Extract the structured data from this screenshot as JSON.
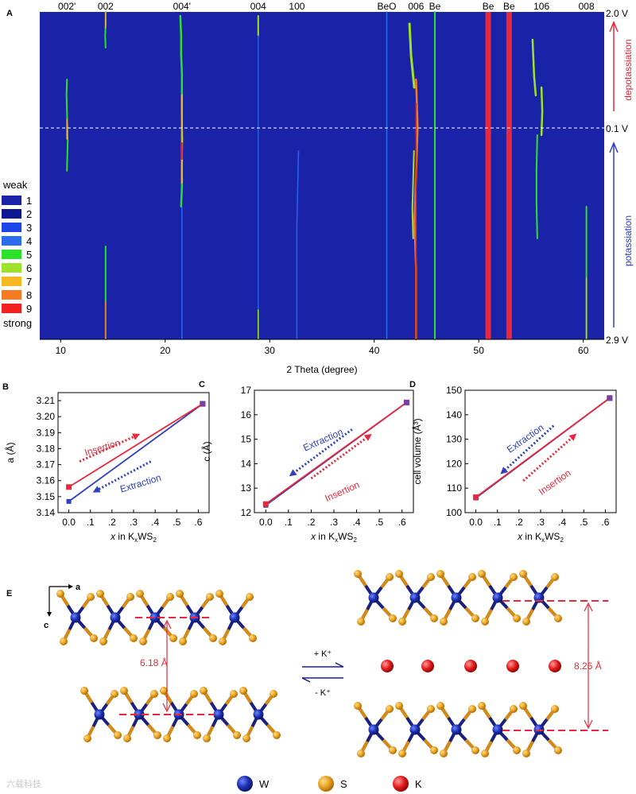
{
  "panel_labels": {
    "A": "A",
    "B": "B",
    "C": "C",
    "D": "D",
    "E": "E"
  },
  "chart_data": [
    {
      "panel": "A",
      "type": "heatmap",
      "xlabel": "2 Theta (degree)",
      "xlim": [
        8,
        62
      ],
      "x_ticks": [
        10,
        20,
        30,
        40,
        50,
        60
      ],
      "peak_labels": [
        {
          "label": "002'",
          "x": 10.6
        },
        {
          "label": "002",
          "x": 14.3
        },
        {
          "label": "004'",
          "x": 21.6
        },
        {
          "label": "004",
          "x": 28.9
        },
        {
          "label": "100",
          "x": 32.6
        },
        {
          "label": "BeO",
          "x": 41.2
        },
        {
          "label": "006",
          "x": 44.0
        },
        {
          "label": "Be",
          "x": 45.8
        },
        {
          "label": "Be",
          "x": 50.9
        },
        {
          "label": "Be",
          "x": 52.9
        },
        {
          "label": "106",
          "x": 56.0
        },
        {
          "label": "008",
          "x": 60.3
        }
      ],
      "voltage_labels": {
        "top": "2.0 V",
        "middle": "0.1 V",
        "bottom": "2.9 V"
      },
      "process_labels": {
        "upper": "depotassiation",
        "lower": "potassiation"
      },
      "legend": {
        "top": "weak",
        "bottom": "strong",
        "levels": [
          "1",
          "2",
          "3",
          "4",
          "5",
          "6",
          "7",
          "8",
          "9"
        ],
        "colors": [
          "#1a22a8",
          "#0a1790",
          "#1e45e8",
          "#2a6cf0",
          "#2ce02c",
          "#9ee22a",
          "#f5b820",
          "#f57a20",
          "#f22020"
        ]
      }
    },
    {
      "panel": "B",
      "type": "line",
      "xlabel_pre": "x",
      "xlabel_mid": " in K",
      "xlabel_sub1": "x",
      "xlabel_post": "WS",
      "xlabel_sub2": "2",
      "ylabel": "a (Å)",
      "xlim": [
        -0.05,
        0.65
      ],
      "ylim": [
        3.14,
        3.215
      ],
      "x_ticks": [
        0.0,
        0.1,
        0.2,
        0.3,
        0.4,
        0.5,
        0.6
      ],
      "x_tick_labels": [
        "0.0",
        ".1",
        ".2",
        ".3",
        ".4",
        ".5",
        ".6"
      ],
      "y_ticks": [
        3.14,
        3.15,
        3.16,
        3.17,
        3.18,
        3.19,
        3.2,
        3.21
      ],
      "y_tick_labels": [
        "3.14",
        "3.15",
        "3.16",
        "3.17",
        "3.18",
        "3.19",
        "3.20",
        "3.21"
      ],
      "series": [
        {
          "name": "Insertion",
          "color": "#e8283c",
          "x": [
            0.0,
            0.62
          ],
          "y": [
            3.156,
            3.208
          ]
        },
        {
          "name": "Extraction",
          "color": "#2f3fbf",
          "x": [
            0.0,
            0.62
          ],
          "y": [
            3.147,
            3.208
          ]
        }
      ],
      "annotations": [
        "Insertion",
        "Extraction"
      ]
    },
    {
      "panel": "C",
      "type": "line",
      "xlabel_pre": "x",
      "xlabel_mid": " in K",
      "xlabel_sub1": "x",
      "xlabel_post": "WS",
      "xlabel_sub2": "2",
      "ylabel": "c (Å)",
      "xlim": [
        -0.05,
        0.65
      ],
      "ylim": [
        12,
        17
      ],
      "x_ticks": [
        0.0,
        0.1,
        0.2,
        0.3,
        0.4,
        0.5,
        0.6
      ],
      "x_tick_labels": [
        "0.0",
        ".1",
        ".2",
        ".3",
        ".4",
        ".5",
        ".6"
      ],
      "y_ticks": [
        12,
        13,
        14,
        15,
        16,
        17
      ],
      "y_tick_labels": [
        "12",
        "13",
        "14",
        "15",
        "16",
        "17"
      ],
      "series": [
        {
          "name": "Insertion",
          "color": "#e8283c",
          "x": [
            0.0,
            0.62
          ],
          "y": [
            12.35,
            16.5
          ]
        },
        {
          "name": "Extraction",
          "color": "#2f3fbf",
          "x": [
            0.0,
            0.62
          ],
          "y": [
            12.3,
            16.5
          ]
        }
      ],
      "annotations": [
        "Extraction",
        "Insertion"
      ]
    },
    {
      "panel": "D",
      "type": "line",
      "xlabel_pre": "x",
      "xlabel_mid": " in K",
      "xlabel_sub1": "x",
      "xlabel_post": "WS",
      "xlabel_sub2": "2",
      "ylabel": "cell volume (Å³)",
      "xlim": [
        -0.05,
        0.65
      ],
      "ylim": [
        100,
        150
      ],
      "x_ticks": [
        0.0,
        0.1,
        0.2,
        0.3,
        0.4,
        0.5,
        0.6
      ],
      "x_tick_labels": [
        "0.0",
        ".1",
        ".2",
        ".3",
        ".4",
        ".5",
        ".6"
      ],
      "y_ticks": [
        100,
        110,
        120,
        130,
        140,
        150
      ],
      "y_tick_labels": [
        "100",
        "110",
        "120",
        "130",
        "140",
        "150"
      ],
      "series": [
        {
          "name": "Insertion",
          "color": "#e8283c",
          "x": [
            0.0,
            0.62
          ],
          "y": [
            106.3,
            146.8
          ]
        },
        {
          "name": "Extraction",
          "color": "#2f3fbf",
          "x": [
            0.0,
            0.62
          ],
          "y": [
            106.0,
            146.8
          ]
        }
      ],
      "annotations": [
        "Extraction",
        "Insertion"
      ]
    }
  ],
  "structure": {
    "axis_a": "a",
    "axis_c": "c",
    "spacing_left": "6.18 Å",
    "spacing_right": "8.26 Å",
    "forward": "+ K⁺",
    "reverse": "- K⁺",
    "legend": [
      {
        "label": "W",
        "color": "#1a2fb0"
      },
      {
        "label": "S",
        "color": "#e8a020"
      },
      {
        "label": "K",
        "color": "#e21b1b"
      }
    ]
  },
  "watermark": "六载科技"
}
